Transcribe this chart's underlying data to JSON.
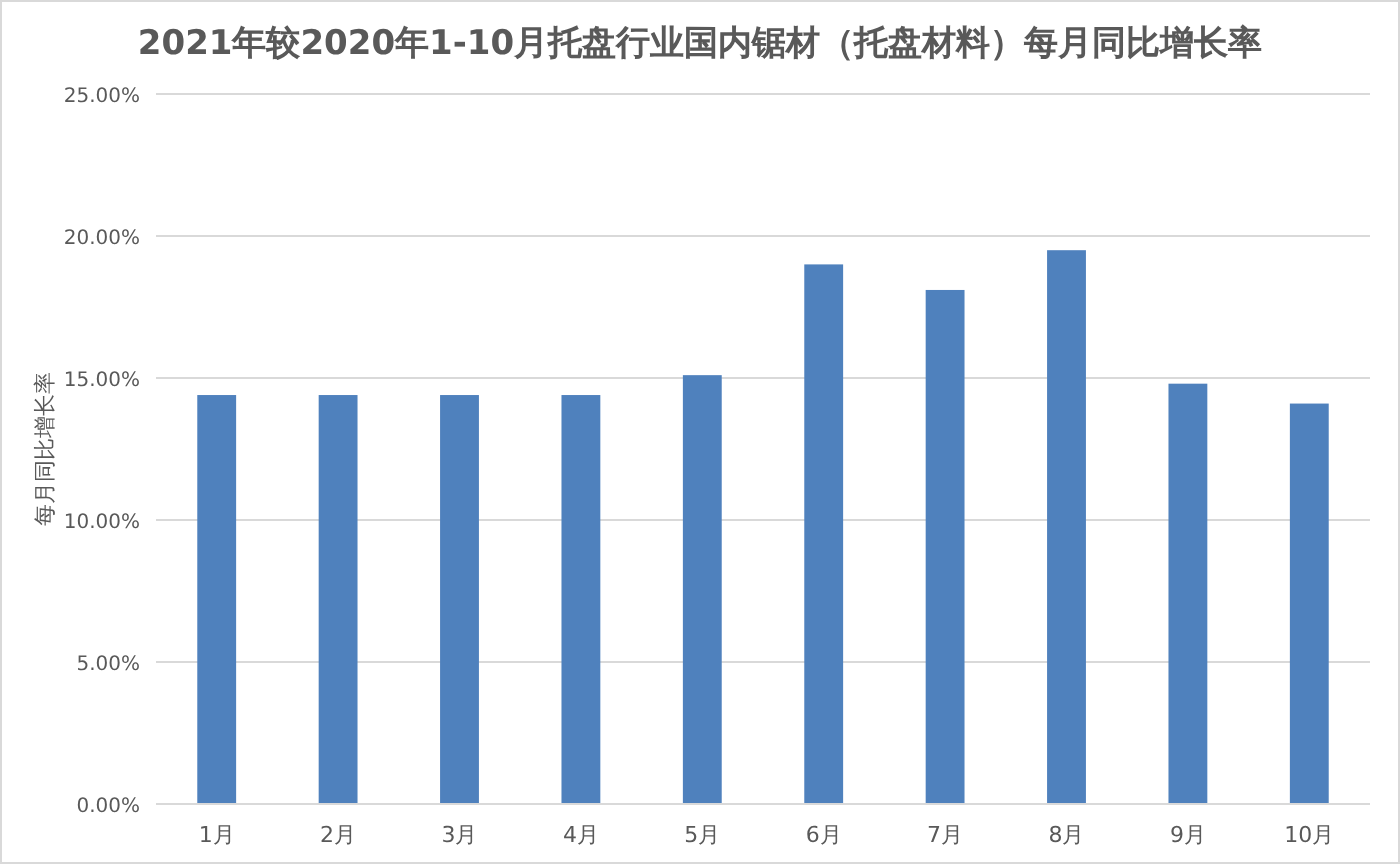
{
  "chart_data": {
    "type": "bar",
    "title": "2021年较2020年1-10月托盘行业国内锯材（托盘材料）每月同比增长率",
    "ylabel": "每月同比增长率",
    "categories": [
      "1月",
      "2月",
      "3月",
      "4月",
      "5月",
      "6月",
      "7月",
      "8月",
      "9月",
      "10月"
    ],
    "values": [
      14.4,
      14.4,
      14.4,
      14.4,
      15.1,
      19.0,
      18.1,
      19.5,
      14.8,
      14.1
    ],
    "color": "#4f81bd",
    "ylim": [
      0,
      25
    ],
    "yticks": [
      {
        "value": 0,
        "label": "0.00%"
      },
      {
        "value": 5,
        "label": "5.00%"
      },
      {
        "value": 10,
        "label": "10.00%"
      },
      {
        "value": 15,
        "label": "15.00%"
      },
      {
        "value": 20,
        "label": "20.00%"
      },
      {
        "value": 25,
        "label": "25.00%"
      }
    ],
    "grid": "y"
  }
}
